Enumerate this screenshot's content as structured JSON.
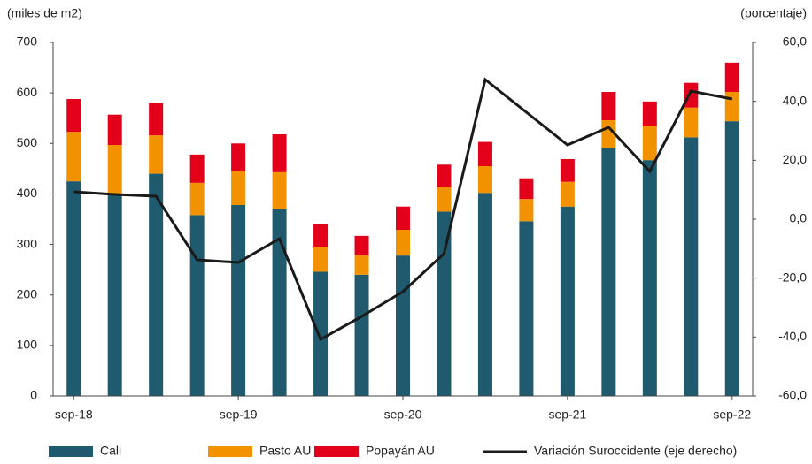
{
  "chart_data": {
    "type": "stacked-bar-line",
    "left_axis_label": "(miles de m2)",
    "right_axis_label": "(porcentaje)",
    "categories": [
      "sep-18",
      null,
      null,
      null,
      "sep-19",
      null,
      null,
      null,
      "sep-20",
      null,
      null,
      null,
      "sep-21",
      null,
      null,
      null,
      "sep-22"
    ],
    "series": [
      {
        "name": "Cali",
        "color": "#1f5a6e",
        "values": [
          425,
          400,
          440,
          358,
          378,
          370,
          246,
          240,
          278,
          365,
          402,
          346,
          375,
          490,
          467,
          512,
          544
        ]
      },
      {
        "name": "Pasto AU",
        "color": "#f39200",
        "values": [
          98,
          97,
          76,
          64,
          67,
          73,
          48,
          38,
          51,
          48,
          53,
          44,
          49,
          56,
          67,
          59,
          58
        ]
      },
      {
        "name": "Popayán AU",
        "color": "#e3001b",
        "values": [
          65,
          60,
          65,
          56,
          55,
          75,
          46,
          39,
          46,
          45,
          48,
          41,
          45,
          56,
          49,
          49,
          58
        ]
      },
      {
        "name": "Variación Suroccidente (eje derecho)",
        "color": "#1a1a1a",
        "axis": "y2",
        "values": [
          9.3,
          8.4,
          7.8,
          -13.8,
          -14.7,
          -6.6,
          -40.8,
          -33,
          -24.6,
          -11.7,
          47.4,
          36.3,
          25.2,
          31.2,
          16.2,
          43.5,
          40.8
        ]
      }
    ],
    "ylim": [
      0,
      700
    ],
    "yticks": [
      0,
      100,
      200,
      300,
      400,
      500,
      600,
      700
    ],
    "y2lim": [
      -60,
      60
    ],
    "y2ticks": [
      {
        "value": -60,
        "label": "-60,0"
      },
      {
        "value": -40,
        "label": "-40,0"
      },
      {
        "value": -20,
        "label": "-20,0"
      },
      {
        "value": 0,
        "label": "0,0"
      },
      {
        "value": 20,
        "label": "20,0"
      },
      {
        "value": 40,
        "label": "40,0"
      },
      {
        "value": 60,
        "label": "60,0"
      }
    ]
  }
}
